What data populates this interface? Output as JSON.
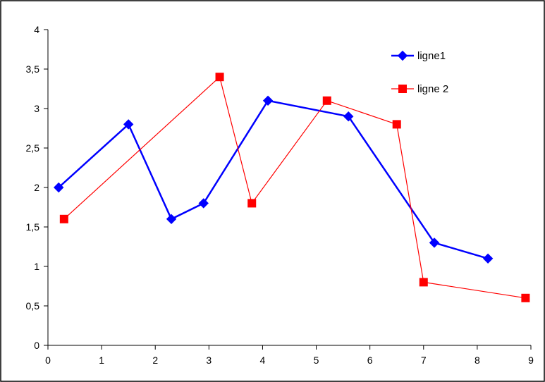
{
  "chart_data": {
    "type": "scatter",
    "title": "",
    "xlabel": "",
    "ylabel": "",
    "xlim": [
      0,
      9
    ],
    "ylim": [
      0,
      4
    ],
    "x_ticks": [
      "0",
      "1",
      "2",
      "3",
      "4",
      "5",
      "6",
      "7",
      "8",
      "9"
    ],
    "y_ticks": [
      "0",
      "0,5",
      "1",
      "1,5",
      "2",
      "2,5",
      "3",
      "3,5",
      "4"
    ],
    "grid": false,
    "legend_position": "top-right",
    "series": [
      {
        "name": "ligne1",
        "color": "#0000ff",
        "marker": "diamond",
        "x": [
          0.2,
          1.5,
          2.3,
          2.9,
          4.1,
          5.6,
          7.2,
          8.2
        ],
        "y": [
          2.0,
          2.8,
          1.6,
          1.8,
          3.1,
          2.9,
          1.3,
          1.1
        ]
      },
      {
        "name": "ligne 2",
        "color": "#ff0000",
        "marker": "square",
        "x": [
          0.3,
          3.2,
          3.8,
          5.2,
          6.5,
          7.0,
          8.9
        ],
        "y": [
          1.6,
          3.4,
          1.8,
          3.1,
          2.8,
          0.8,
          0.6
        ]
      }
    ]
  }
}
